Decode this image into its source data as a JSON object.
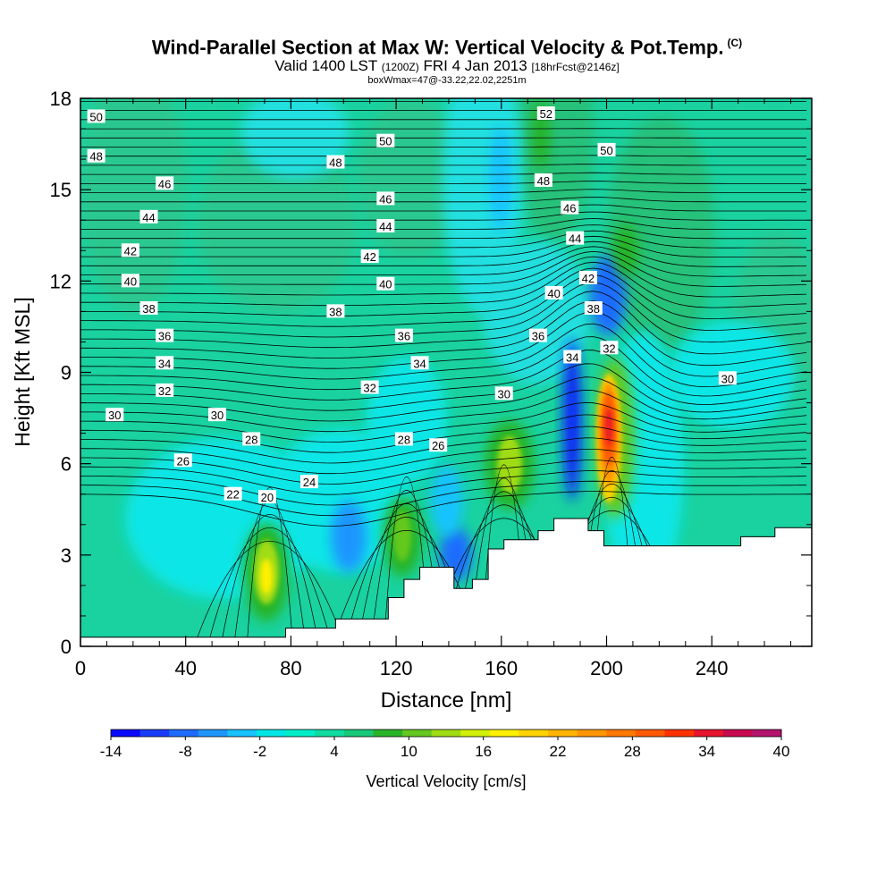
{
  "titles": {
    "main": "Wind-Parallel Section at Max W: Vertical Velocity & Pot.Temp.",
    "copyright": "(C)",
    "valid_prefix": "Valid 1400 LST",
    "valid_utc": "(1200Z)",
    "valid_date": "FRI 4 Jan 2013",
    "forecast": "[18hrFcst@2146z]",
    "box_info": "boxWmax=47@-33.22,22.02,2251m"
  },
  "chart_data": {
    "type": "heatmap",
    "title": "Wind-Parallel Section at Max W: Vertical Velocity & Pot.Temp.",
    "xlabel": "Distance [nm]",
    "ylabel": "Height [Kft MSL]",
    "xlim": [
      0,
      278
    ],
    "ylim": [
      0,
      18
    ],
    "x_ticks": [
      "0",
      "40",
      "80",
      "120",
      "160",
      "200",
      "240"
    ],
    "y_ticks": [
      "0",
      "3",
      "6",
      "9",
      "12",
      "15",
      "18"
    ],
    "colorbar": {
      "label": "Vertical Velocity [cm/s]",
      "ticks": [
        "-14",
        "-8",
        "-2",
        "4",
        "10",
        "16",
        "22",
        "28",
        "34",
        "40"
      ],
      "min": -14,
      "max": 40,
      "colors": [
        "#0a0aff",
        "#1a3cff",
        "#1e6cff",
        "#1e96ff",
        "#19c3ff",
        "#00e6e6",
        "#00eec8",
        "#10dca0",
        "#19c878",
        "#28b428",
        "#64c81e",
        "#a0dc14",
        "#d2f00a",
        "#fff000",
        "#ffd200",
        "#ffb400",
        "#ff9600",
        "#ff7800",
        "#ff5a00",
        "#ff3200",
        "#e6142d",
        "#c80a50",
        "#b4146e"
      ]
    },
    "terrain_kft": [
      [
        0,
        0.3
      ],
      [
        78,
        0.3
      ],
      [
        78,
        0.6
      ],
      [
        97,
        0.6
      ],
      [
        97,
        0.9
      ],
      [
        117,
        0.9
      ],
      [
        117,
        1.6
      ],
      [
        123,
        1.6
      ],
      [
        123,
        2.2
      ],
      [
        129,
        2.2
      ],
      [
        129,
        2.6
      ],
      [
        142,
        2.6
      ],
      [
        142,
        1.9
      ],
      [
        149,
        1.9
      ],
      [
        149,
        2.2
      ],
      [
        155,
        2.2
      ],
      [
        155,
        3.2
      ],
      [
        161,
        3.2
      ],
      [
        161,
        3.5
      ],
      [
        174,
        3.5
      ],
      [
        174,
        3.8
      ],
      [
        180,
        3.8
      ],
      [
        180,
        4.2
      ],
      [
        193,
        4.2
      ],
      [
        193,
        3.8
      ],
      [
        199,
        3.8
      ],
      [
        199,
        3.3
      ],
      [
        251,
        3.3
      ],
      [
        251,
        3.6
      ],
      [
        264,
        3.6
      ],
      [
        264,
        3.9
      ],
      [
        278,
        3.9
      ]
    ],
    "theta_labels": [
      {
        "x": 6,
        "y": 17.4,
        "label": "50"
      },
      {
        "x": 6,
        "y": 16.1,
        "label": "48"
      },
      {
        "x": 32,
        "y": 15.2,
        "label": "46"
      },
      {
        "x": 26,
        "y": 14.1,
        "label": "44"
      },
      {
        "x": 19,
        "y": 13.0,
        "label": "42"
      },
      {
        "x": 19,
        "y": 12.0,
        "label": "40"
      },
      {
        "x": 26,
        "y": 11.1,
        "label": "38"
      },
      {
        "x": 32,
        "y": 10.2,
        "label": "36"
      },
      {
        "x": 32,
        "y": 9.3,
        "label": "34"
      },
      {
        "x": 32,
        "y": 8.4,
        "label": "32"
      },
      {
        "x": 13,
        "y": 7.6,
        "label": "30"
      },
      {
        "x": 52,
        "y": 7.6,
        "label": "30"
      },
      {
        "x": 65,
        "y": 6.8,
        "label": "28"
      },
      {
        "x": 39,
        "y": 6.1,
        "label": "26"
      },
      {
        "x": 58,
        "y": 5.0,
        "label": "22"
      },
      {
        "x": 71,
        "y": 4.9,
        "label": "20"
      },
      {
        "x": 87,
        "y": 5.4,
        "label": "24"
      },
      {
        "x": 116,
        "y": 16.6,
        "label": "50"
      },
      {
        "x": 97,
        "y": 15.9,
        "label": "48"
      },
      {
        "x": 116,
        "y": 14.7,
        "label": "46"
      },
      {
        "x": 116,
        "y": 13.8,
        "label": "44"
      },
      {
        "x": 110,
        "y": 12.8,
        "label": "42"
      },
      {
        "x": 116,
        "y": 11.9,
        "label": "40"
      },
      {
        "x": 97,
        "y": 11.0,
        "label": "38"
      },
      {
        "x": 123,
        "y": 10.2,
        "label": "36"
      },
      {
        "x": 129,
        "y": 9.3,
        "label": "34"
      },
      {
        "x": 110,
        "y": 8.5,
        "label": "32"
      },
      {
        "x": 123,
        "y": 6.8,
        "label": "28"
      },
      {
        "x": 136,
        "y": 6.6,
        "label": "26"
      },
      {
        "x": 161,
        "y": 8.3,
        "label": "30"
      },
      {
        "x": 177,
        "y": 17.5,
        "label": "52"
      },
      {
        "x": 200,
        "y": 16.3,
        "label": "50"
      },
      {
        "x": 176,
        "y": 15.3,
        "label": "48"
      },
      {
        "x": 186,
        "y": 14.4,
        "label": "46"
      },
      {
        "x": 188,
        "y": 13.4,
        "label": "44"
      },
      {
        "x": 193,
        "y": 12.1,
        "label": "42"
      },
      {
        "x": 180,
        "y": 11.6,
        "label": "40"
      },
      {
        "x": 195,
        "y": 11.1,
        "label": "38"
      },
      {
        "x": 174,
        "y": 10.2,
        "label": "36"
      },
      {
        "x": 187,
        "y": 9.5,
        "label": "34"
      },
      {
        "x": 201,
        "y": 9.8,
        "label": "32"
      },
      {
        "x": 246,
        "y": 8.8,
        "label": "30"
      }
    ],
    "velocity_features": [
      {
        "x": 71,
        "y": 2.5,
        "w_cm_s": 16,
        "sign": "up"
      },
      {
        "x": 124,
        "y": 3.2,
        "w_cm_s": 10,
        "sign": "up"
      },
      {
        "x": 161,
        "y": 5.2,
        "w_cm_s": 12,
        "sign": "up"
      },
      {
        "x": 200,
        "y": 7.2,
        "w_cm_s": 40,
        "sign": "up"
      },
      {
        "x": 187,
        "y": 7.5,
        "w_cm_s": -14,
        "sign": "down"
      },
      {
        "x": 143,
        "y": 3.0,
        "w_cm_s": -12,
        "sign": "down"
      },
      {
        "x": 193,
        "y": 11.0,
        "w_cm_s": -12,
        "sign": "down"
      }
    ]
  }
}
